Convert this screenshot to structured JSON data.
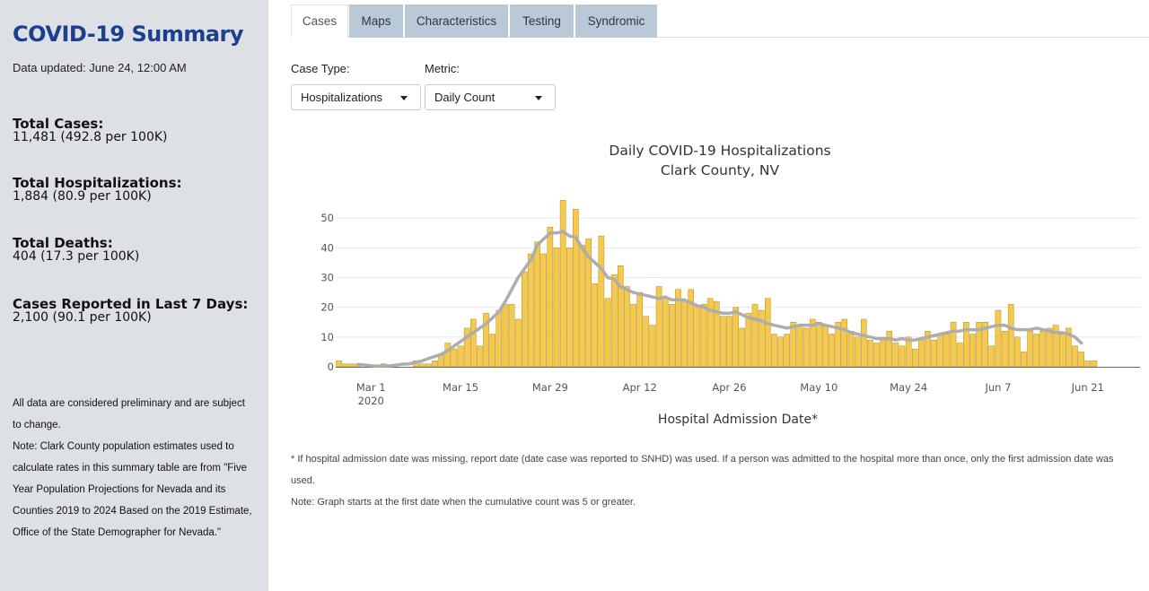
{
  "sidebar": {
    "title": "COVID-19 Summary",
    "updated": "Data updated: June 24, 12:00 AM",
    "stats": [
      {
        "label": "Total Cases:",
        "value": "11,481 (492.8 per 100K)"
      },
      {
        "label": "Total Hospitalizations:",
        "value": "1,884 (80.9 per 100K)"
      },
      {
        "label": "Total Deaths:",
        "value": "404 (17.3 per 100K)"
      },
      {
        "label": "Cases Reported in Last 7 Days:",
        "value": "2,100 (90.1 per 100K)"
      }
    ],
    "note1": "All data are considered preliminary and are subject to change.",
    "note2": "Note: Clark County population estimates used to calculate rates in this summary table are from \"Five Year Population Projections for Nevada and its Counties 2019 to 2024 Based on the 2019 Estimate, Office of the State Demographer for Nevada.\""
  },
  "tabs": [
    {
      "label": "Cases",
      "active": true
    },
    {
      "label": "Maps",
      "active": false
    },
    {
      "label": "Characteristics",
      "active": false
    },
    {
      "label": "Testing",
      "active": false
    },
    {
      "label": "Syndromic",
      "active": false
    }
  ],
  "controls": {
    "case_type_label": "Case Type:",
    "case_type_value": "Hospitalizations",
    "metric_label": "Metric:",
    "metric_value": "Daily Count"
  },
  "footnotes": {
    "asterisk": "* If hospital admission date was missing, report date (date case was reported to SNHD) was used. If a person was admitted to the hospital more than once, only the first admission date was used.",
    "note": "Note: Graph starts at the first date when the cumulative count was 5 or greater."
  },
  "colors": {
    "bar": "#f6c94b",
    "bar_edge": "#9a7a1a",
    "line": "#adadad",
    "title_blue": "#1c3f8f",
    "tab_inactive": "#bac9d8"
  },
  "chart_data": {
    "type": "bar",
    "title": "Daily COVID-19 Hospitalizations",
    "subtitle": "Clark County, NV",
    "xlabel": "Hospital Admission Date*",
    "ylabel": "",
    "ylim": [
      0,
      57
    ],
    "yticks": [
      0,
      10,
      20,
      30,
      40,
      50
    ],
    "x_start": "2020-02-25",
    "xtick_labels": [
      {
        "date": "2020-03-01",
        "label": "Mar 1",
        "sub": "2020"
      },
      {
        "date": "2020-03-15",
        "label": "Mar 15"
      },
      {
        "date": "2020-03-29",
        "label": "Mar 29"
      },
      {
        "date": "2020-04-12",
        "label": "Apr 12"
      },
      {
        "date": "2020-04-26",
        "label": "Apr 26"
      },
      {
        "date": "2020-05-10",
        "label": "May 10"
      },
      {
        "date": "2020-05-24",
        "label": "May 24"
      },
      {
        "date": "2020-06-07",
        "label": "Jun 7"
      },
      {
        "date": "2020-06-21",
        "label": "Jun 21"
      }
    ],
    "series": [
      {
        "type": "bar",
        "values": [
          2,
          1,
          1,
          1,
          0,
          0,
          0,
          1,
          0,
          0,
          0,
          0,
          2,
          1,
          1,
          2,
          4,
          8,
          6,
          7,
          13,
          16,
          7,
          18,
          11,
          19,
          21,
          21,
          16,
          32,
          38,
          42,
          38,
          47,
          40,
          56,
          40,
          53,
          41,
          43,
          28,
          44,
          23,
          31,
          34,
          27,
          21,
          25,
          17,
          14,
          27,
          23,
          21,
          26,
          22,
          26,
          20,
          21,
          23,
          22,
          17,
          17,
          20,
          13,
          18,
          21,
          19,
          23,
          11,
          10,
          11,
          15,
          14,
          13,
          16,
          15,
          14,
          11,
          15,
          16,
          12,
          10,
          16,
          9,
          8,
          9,
          12,
          8,
          7,
          10,
          6,
          9,
          12,
          9,
          11,
          11,
          15,
          8,
          15,
          11,
          15,
          15,
          7,
          19,
          12,
          21,
          10,
          5,
          12,
          11,
          12,
          13,
          14,
          11,
          13,
          7,
          5,
          2,
          2
        ],
        "start_offset": 0
      },
      {
        "type": "line",
        "values": [
          0.8,
          0.6,
          0.4,
          0.2,
          0.3,
          0.3,
          0.6,
          0.9,
          1.0,
          1.5,
          2.0,
          2.8,
          3.5,
          4.2,
          5.5,
          7.0,
          8.5,
          10.0,
          11.5,
          13.0,
          14.5,
          16.5,
          18.5,
          22.0,
          26.0,
          30.0,
          33.0,
          36.0,
          41.0,
          43.0,
          45.0,
          45.0,
          45.5,
          44.0,
          43.5,
          40.0,
          37.0,
          35.0,
          33.0,
          30.0,
          29.5,
          27.0,
          26.0,
          25.0,
          24.5,
          24.0,
          23.5,
          23.0,
          23.5,
          22.5,
          22.5,
          22.5,
          21.5,
          20.5,
          20.0,
          19.0,
          18.5,
          18.0,
          18.0,
          18.5,
          17.5,
          16.5,
          16.0,
          15.5,
          14.5,
          14.0,
          13.5,
          13.0,
          13.5,
          14.0,
          14.0,
          14.0,
          14.5,
          14.0,
          13.5,
          13.0,
          12.5,
          11.5,
          11.0,
          10.5,
          10.0,
          9.5,
          9.5,
          9.5,
          9.0,
          9.5,
          9.0,
          9.0,
          9.5,
          10.0,
          10.5,
          11.0,
          11.5,
          12.0,
          12.0,
          12.5,
          12.5,
          12.5,
          13.0,
          13.5,
          14.0,
          14.0,
          13.0,
          12.5,
          12.5,
          12.5,
          13.0,
          12.5,
          12.0,
          11.5,
          11.5,
          11.0,
          10.0,
          8.0
        ],
        "start_offset": 3
      }
    ]
  }
}
